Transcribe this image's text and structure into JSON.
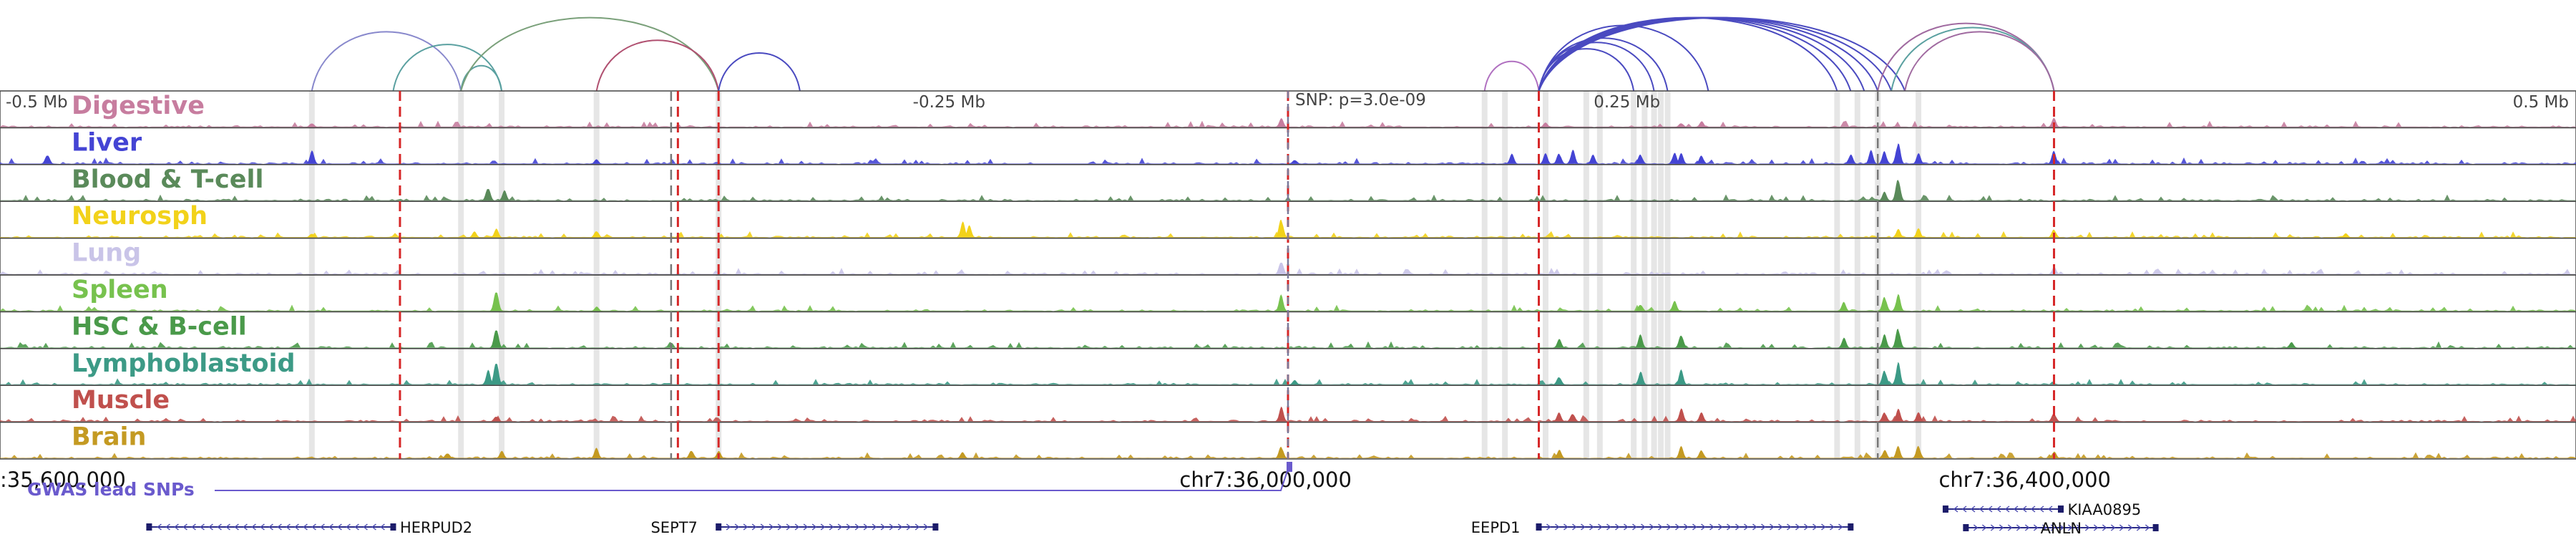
{
  "chart_data": {
    "type": "area",
    "title": "",
    "xlabel": "",
    "ylabel": "",
    "x_unit": "Mb relative to lead SNP",
    "xlim": [
      -0.9,
      0.95
    ],
    "scale_ticks": [
      {
        "x": -0.5,
        "label": "-0.5 Mb"
      },
      {
        "x": -0.25,
        "label": "-0.25 Mb"
      },
      {
        "x": 0.25,
        "label": "0.25 Mb"
      },
      {
        "x": 0.5,
        "label": "0.5 Mb"
      }
    ],
    "snp_label": "SNP: p=3.0e-09",
    "snp_x": 0.0,
    "coordinate_labels": [
      {
        "x": -0.92,
        "label": ":35,600,000"
      },
      {
        "x": -0.08,
        "label": "chr7:36,000,000"
      },
      {
        "x": 0.48,
        "label": "chr7:36,400,000"
      }
    ],
    "gwas_label": "GWAS lead SNPs",
    "tracks": [
      {
        "name": "Digestive",
        "color": "#c77d9f"
      },
      {
        "name": "Liver",
        "color": "#4444d4"
      },
      {
        "name": "Blood & T-cell",
        "color": "#5a8a5a"
      },
      {
        "name": "Neurosph",
        "color": "#f2d21a"
      },
      {
        "name": "Lung",
        "color": "#c9c4e8"
      },
      {
        "name": "Spleen",
        "color": "#77c24e"
      },
      {
        "name": "HSC & B-cell",
        "color": "#4a9a4a"
      },
      {
        "name": "Lymphoblastoid",
        "color": "#3c9a86"
      },
      {
        "name": "Muscle",
        "color": "#c0504d"
      },
      {
        "name": "Brain",
        "color": "#c49a22"
      }
    ],
    "peaks": [
      {
        "track": "Liver",
        "x": -0.915,
        "h": 0.35
      },
      {
        "track": "Liver",
        "x": -0.72,
        "h": 0.45
      },
      {
        "track": "Digestive",
        "x": -0.72,
        "h": 0.15
      },
      {
        "track": "Neurosph",
        "x": -0.72,
        "h": 0.15
      },
      {
        "track": "Blood & T-cell",
        "x": -0.59,
        "h": 0.5
      },
      {
        "track": "Blood & T-cell",
        "x": -0.578,
        "h": 0.35
      },
      {
        "track": "Spleen",
        "x": -0.584,
        "h": 0.8
      },
      {
        "track": "HSC & B-cell",
        "x": -0.584,
        "h": 0.75
      },
      {
        "track": "Lymphoblastoid",
        "x": -0.584,
        "h": 0.9
      },
      {
        "track": "Lymphoblastoid",
        "x": -0.59,
        "h": 0.5
      },
      {
        "track": "Muscle",
        "x": -0.584,
        "h": 0.2
      },
      {
        "track": "Neurosph",
        "x": -0.584,
        "h": 0.3
      },
      {
        "track": "Neurosph",
        "x": -0.6,
        "h": 0.2
      },
      {
        "track": "Brain",
        "x": -0.62,
        "h": 0.2
      },
      {
        "track": "Brain",
        "x": -0.58,
        "h": 0.25
      },
      {
        "track": "Brain",
        "x": -0.51,
        "h": 0.35
      },
      {
        "track": "Brain",
        "x": -0.44,
        "h": 0.3
      },
      {
        "track": "Brain",
        "x": -0.42,
        "h": 0.25
      },
      {
        "track": "Neurosph",
        "x": -0.51,
        "h": 0.25
      },
      {
        "track": "Spleen",
        "x": -0.51,
        "h": 0.15
      },
      {
        "track": "Liver",
        "x": -0.51,
        "h": 0.15
      },
      {
        "track": "Neurosph",
        "x": -0.24,
        "h": 0.55
      },
      {
        "track": "Neurosph",
        "x": -0.235,
        "h": 0.4
      },
      {
        "track": "Brain",
        "x": -0.24,
        "h": 0.2
      },
      {
        "track": "Digestive",
        "x": -0.005,
        "h": 0.3
      },
      {
        "track": "Neurosph",
        "x": -0.005,
        "h": 0.7
      },
      {
        "track": "Lung",
        "x": -0.005,
        "h": 0.5
      },
      {
        "track": "Spleen",
        "x": -0.005,
        "h": 0.55
      },
      {
        "track": "Muscle",
        "x": -0.005,
        "h": 0.5
      },
      {
        "track": "Brain",
        "x": -0.005,
        "h": 0.45
      },
      {
        "track": "Liver",
        "x": 0.005,
        "h": 0.15
      },
      {
        "track": "Lymphoblastoid",
        "x": 0.005,
        "h": 0.15
      },
      {
        "track": "Liver",
        "x": 0.165,
        "h": 0.35
      },
      {
        "track": "Liver",
        "x": 0.19,
        "h": 0.35
      },
      {
        "track": "Liver",
        "x": 0.2,
        "h": 0.4
      },
      {
        "track": "Digestive",
        "x": 0.19,
        "h": 0.15
      },
      {
        "track": "HSC & B-cell",
        "x": 0.2,
        "h": 0.3
      },
      {
        "track": "Lymphoblastoid",
        "x": 0.2,
        "h": 0.3
      },
      {
        "track": "Muscle",
        "x": 0.2,
        "h": 0.3
      },
      {
        "track": "Brain",
        "x": 0.2,
        "h": 0.3
      },
      {
        "track": "Liver",
        "x": 0.21,
        "h": 0.5
      },
      {
        "track": "Muscle",
        "x": 0.21,
        "h": 0.3
      },
      {
        "track": "Liver",
        "x": 0.225,
        "h": 0.3
      },
      {
        "track": "Liver",
        "x": 0.26,
        "h": 0.35
      },
      {
        "track": "HSC & B-cell",
        "x": 0.26,
        "h": 0.45
      },
      {
        "track": "Lymphoblastoid",
        "x": 0.26,
        "h": 0.45
      },
      {
        "track": "Spleen",
        "x": 0.26,
        "h": 0.25
      },
      {
        "track": "Liver",
        "x": 0.285,
        "h": 0.4
      },
      {
        "track": "Liver",
        "x": 0.29,
        "h": 0.35
      },
      {
        "track": "Digestive",
        "x": 0.29,
        "h": 0.15
      },
      {
        "track": "Spleen",
        "x": 0.285,
        "h": 0.35
      },
      {
        "track": "HSC & B-cell",
        "x": 0.29,
        "h": 0.5
      },
      {
        "track": "Lymphoblastoid",
        "x": 0.29,
        "h": 0.5
      },
      {
        "track": "Muscle",
        "x": 0.29,
        "h": 0.45
      },
      {
        "track": "Brain",
        "x": 0.29,
        "h": 0.4
      },
      {
        "track": "Liver",
        "x": 0.305,
        "h": 0.3
      },
      {
        "track": "Digestive",
        "x": 0.305,
        "h": 0.2
      },
      {
        "track": "Muscle",
        "x": 0.305,
        "h": 0.3
      },
      {
        "track": "Brain",
        "x": 0.305,
        "h": 0.3
      },
      {
        "track": "Liver",
        "x": 0.415,
        "h": 0.35
      },
      {
        "track": "Liver",
        "x": 0.43,
        "h": 0.45
      },
      {
        "track": "Spleen",
        "x": 0.41,
        "h": 0.3
      },
      {
        "track": "HSC & B-cell",
        "x": 0.41,
        "h": 0.35
      },
      {
        "track": "Liver",
        "x": 0.44,
        "h": 0.45
      },
      {
        "track": "Blood & T-cell",
        "x": 0.44,
        "h": 0.3
      },
      {
        "track": "Spleen",
        "x": 0.44,
        "h": 0.55
      },
      {
        "track": "HSC & B-cell",
        "x": 0.44,
        "h": 0.45
      },
      {
        "track": "Lymphoblastoid",
        "x": 0.44,
        "h": 0.55
      },
      {
        "track": "Muscle",
        "x": 0.44,
        "h": 0.35
      },
      {
        "track": "Brain",
        "x": 0.44,
        "h": 0.3
      },
      {
        "track": "Liver",
        "x": 0.45,
        "h": 0.8
      },
      {
        "track": "Blood & T-cell",
        "x": 0.45,
        "h": 0.85
      },
      {
        "track": "Spleen",
        "x": 0.45,
        "h": 0.6
      },
      {
        "track": "HSC & B-cell",
        "x": 0.45,
        "h": 0.75
      },
      {
        "track": "Lymphoblastoid",
        "x": 0.45,
        "h": 0.8
      },
      {
        "track": "Muscle",
        "x": 0.45,
        "h": 0.45
      },
      {
        "track": "Brain",
        "x": 0.45,
        "h": 0.4
      },
      {
        "track": "Neurosph",
        "x": 0.45,
        "h": 0.3
      },
      {
        "track": "Liver",
        "x": 0.465,
        "h": 0.35
      },
      {
        "track": "Neurosph",
        "x": 0.465,
        "h": 0.3
      },
      {
        "track": "Brain",
        "x": 0.465,
        "h": 0.45
      },
      {
        "track": "Muscle",
        "x": 0.465,
        "h": 0.3
      },
      {
        "track": "Liver",
        "x": 0.565,
        "h": 0.45
      },
      {
        "track": "Digestive",
        "x": 0.565,
        "h": 0.3
      },
      {
        "track": "Neurosph",
        "x": 0.565,
        "h": 0.3
      },
      {
        "track": "Lung",
        "x": 0.565,
        "h": 0.25
      },
      {
        "track": "Muscle",
        "x": 0.565,
        "h": 0.3
      },
      {
        "track": "Brain",
        "x": 0.565,
        "h": 0.25
      },
      {
        "track": "HSC & B-cell",
        "x": 0.74,
        "h": 0.2
      },
      {
        "track": "Neurosph",
        "x": 0.78,
        "h": 0.15
      }
    ],
    "highlight_x": [
      -0.72,
      -0.61,
      -0.58,
      -0.51,
      -0.42,
      0.145,
      0.16,
      0.19,
      0.22,
      0.23,
      0.255,
      0.263,
      0.27,
      0.275,
      0.28,
      0.405,
      0.42,
      0.435,
      0.465
    ],
    "red_dashed_x": [
      -0.655,
      -0.45,
      -0.42,
      0.0,
      0.185,
      0.565
    ],
    "grey_dashed_x": [
      -0.455,
      0.435
    ],
    "loops": [
      {
        "from": -0.72,
        "to": -0.61,
        "color": "#8888cc"
      },
      {
        "from": -0.66,
        "to": -0.58,
        "color": "#5aa0a0"
      },
      {
        "from": -0.61,
        "to": -0.58,
        "color": "#5aa0a0"
      },
      {
        "from": -0.61,
        "to": -0.42,
        "color": "#7aa07a"
      },
      {
        "from": -0.51,
        "to": -0.42,
        "color": "#b05070"
      },
      {
        "from": -0.42,
        "to": -0.36,
        "color": "#4a4ac0"
      },
      {
        "from": 0.145,
        "to": 0.185,
        "color": "#b070c0"
      },
      {
        "from": 0.185,
        "to": 0.255,
        "color": "#4a4ac0"
      },
      {
        "from": 0.185,
        "to": 0.27,
        "color": "#4a4ac0"
      },
      {
        "from": 0.185,
        "to": 0.28,
        "color": "#4a4ac0"
      },
      {
        "from": 0.185,
        "to": 0.31,
        "color": "#4a4ac0"
      },
      {
        "from": 0.185,
        "to": 0.405,
        "color": "#4a4ac0"
      },
      {
        "from": 0.185,
        "to": 0.415,
        "color": "#4a4ac0"
      },
      {
        "from": 0.185,
        "to": 0.425,
        "color": "#4a4ac0"
      },
      {
        "from": 0.185,
        "to": 0.435,
        "color": "#4a4ac0"
      },
      {
        "from": 0.185,
        "to": 0.445,
        "color": "#4a4ac0"
      },
      {
        "from": 0.185,
        "to": 0.455,
        "color": "#4a4ac0"
      },
      {
        "from": 0.435,
        "to": 0.565,
        "color": "#a06aa0"
      },
      {
        "from": 0.445,
        "to": 0.565,
        "color": "#5aa0a0"
      },
      {
        "from": 0.455,
        "to": 0.565,
        "color": "#a06aa0"
      }
    ],
    "genes": [
      {
        "name": "HERPUD2",
        "start": -0.84,
        "end": -0.66,
        "strand": "-",
        "name_x": -0.655,
        "row": 0
      },
      {
        "name": "SEPT7",
        "start": -0.42,
        "end": -0.26,
        "strand": "+",
        "name_x": -0.47,
        "row": 0
      },
      {
        "name": "EEPD1",
        "start": 0.185,
        "end": 0.415,
        "strand": "+",
        "name_x": 0.135,
        "row": 0
      },
      {
        "name": "KIAA0895",
        "start": 0.485,
        "end": 0.57,
        "strand": "-",
        "name_x": 0.575,
        "row": -1
      },
      {
        "name": "ANLN",
        "start": 0.5,
        "end": 0.64,
        "strand": "+",
        "name_x": 0.555,
        "row": 1
      }
    ]
  }
}
